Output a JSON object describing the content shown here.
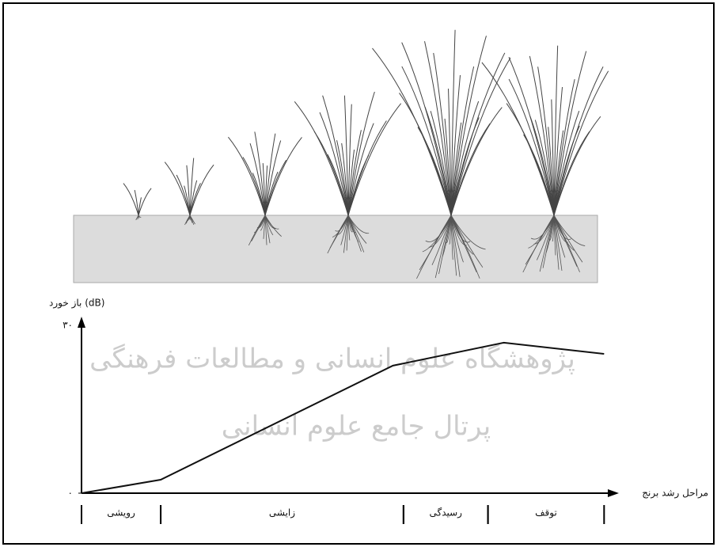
{
  "chart_data": {
    "type": "line",
    "y_label": "باز خورد (dB)",
    "x_label": "مراحل رشد برنج",
    "watermark": [
      "پژوهشگاه علوم انسانی و مطالعات فرهنگی",
      "پرتال جامع علوم انسانی"
    ],
    "x": [
      0,
      15,
      59,
      80,
      99
    ],
    "values": [
      0,
      2.4,
      22.8,
      26.9,
      24.9
    ],
    "color": "#111111",
    "xlim": [
      0,
      100
    ],
    "ylim": [
      0,
      30
    ],
    "yticks": [
      {
        "value": 0,
        "label": "۰"
      },
      {
        "value": 30,
        "label": "۳۰"
      }
    ],
    "stages": [
      {
        "label": "رویشی",
        "start": 0,
        "end": 15
      },
      {
        "label": "زایشی",
        "start": 15,
        "end": 61
      },
      {
        "label": "رسیدگی",
        "start": 61,
        "end": 77
      },
      {
        "label": "توقف",
        "start": 77,
        "end": 99
      }
    ]
  }
}
